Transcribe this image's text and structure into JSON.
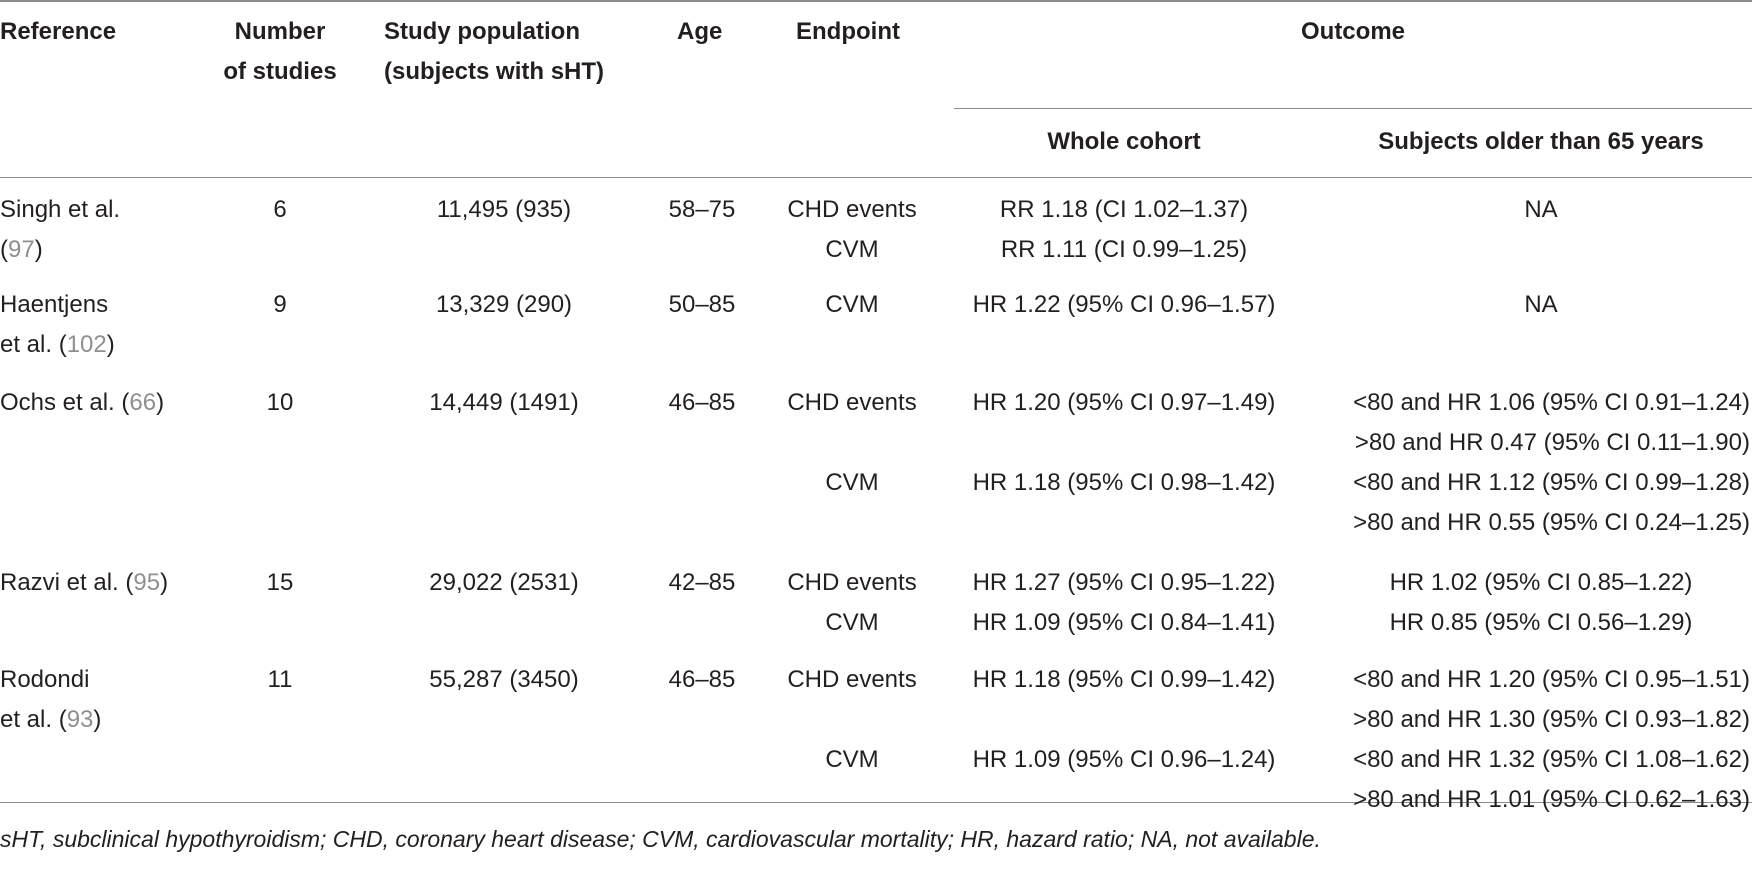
{
  "headers": {
    "reference": "Reference",
    "number_line1": "Number",
    "number_line2": "of studies",
    "population_line1": "Study population",
    "population_line2": "(subjects with sHT)",
    "age": "Age",
    "endpoint": "Endpoint",
    "outcome": "Outcome",
    "whole_cohort": "Whole cohort",
    "older": "Subjects older than 65 years"
  },
  "rows": [
    {
      "ref_line1": "Singh et al.",
      "ref_line2_pre": "(",
      "ref_num": "97",
      "ref_line2_post": ")",
      "number": "6",
      "population": "11,495 (935)",
      "age": "58–75",
      "endpoints": [
        "CHD events",
        "CVM"
      ],
      "whole": [
        "RR 1.18 (CI 1.02–1.37)",
        "RR 1.11 (CI 0.99–1.25)"
      ],
      "older": [
        "NA"
      ]
    },
    {
      "ref_line1": "Haentjens",
      "ref_line2_pre": "et al. (",
      "ref_num": "102",
      "ref_line2_post": ")",
      "number": "9",
      "population": "13,329 (290)",
      "age": "50–85",
      "endpoints": [
        "CVM"
      ],
      "whole": [
        "HR 1.22 (95% CI 0.96–1.57)"
      ],
      "older": [
        "NA"
      ]
    },
    {
      "ref_line1_pre": "Ochs et al. (",
      "ref_num": "66",
      "ref_line1_post": ")",
      "number": "10",
      "population": "14,449 (1491)",
      "age": "46–85",
      "endpoints": [
        "CHD events",
        "CVM"
      ],
      "whole": [
        "HR 1.20 (95% CI 0.97–1.49)",
        "HR 1.18 (95% CI 0.98–1.42)"
      ],
      "older": [
        "<80 and HR 1.06 (95% CI 0.91–1.24)",
        ">80 and HR 0.47 (95% CI 0.11–1.90)",
        "<80 and HR 1.12 (95% CI 0.99–1.28)",
        ">80 and HR 0.55 (95% CI 0.24–1.25)"
      ]
    },
    {
      "ref_line1_pre": "Razvi et al. (",
      "ref_num": "95",
      "ref_line1_post": ")",
      "number": "15",
      "population": "29,022 (2531)",
      "age": "42–85",
      "endpoints": [
        "CHD events",
        "CVM"
      ],
      "whole": [
        "HR 1.27 (95% CI 0.95–1.22)",
        "HR 1.09 (95% CI 0.84–1.41)"
      ],
      "older": [
        "HR 1.02 (95% CI 0.85–1.22)",
        "HR 0.85 (95% CI 0.56–1.29)"
      ]
    },
    {
      "ref_line1": "Rodondi",
      "ref_line2_pre": "et al. (",
      "ref_num": "93",
      "ref_line2_post": ")",
      "number": "11",
      "population": "55,287 (3450)",
      "age": "46–85",
      "endpoints": [
        "CHD events",
        "CVM"
      ],
      "whole": [
        "HR 1.18 (95% CI 0.99–1.42)",
        "HR 1.09 (95% CI 0.96–1.24)"
      ],
      "older": [
        "<80 and HR 1.20 (95% CI 0.95–1.51)",
        ">80 and HR 1.30 (95% CI 0.93–1.82)",
        "<80 and HR 1.32 (95% CI 1.08–1.62)",
        ">80 and HR 1.01 (95% CI 0.62–1.63)"
      ]
    }
  ],
  "footnote": "sHT, subclinical hypothyroidism; CHD, coronary heart disease; CVM, cardiovascular mortality; HR, hazard ratio; NA, not available."
}
